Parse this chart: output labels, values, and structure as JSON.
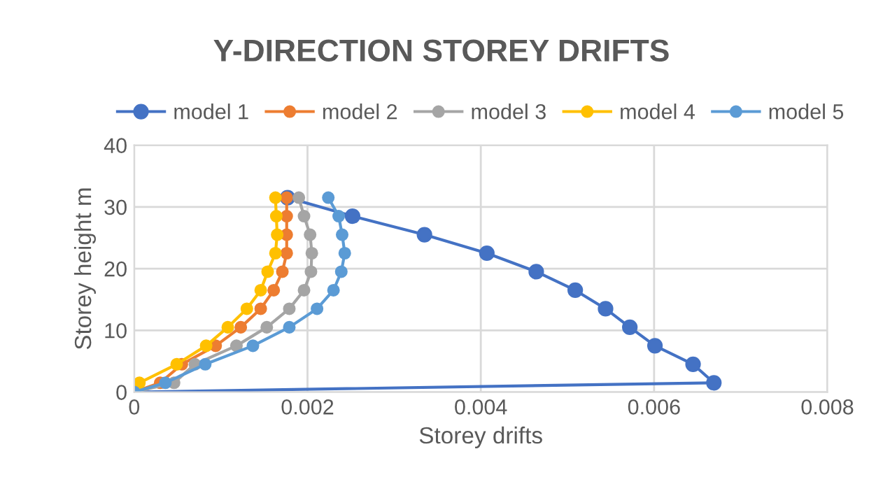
{
  "chart_data": {
    "type": "line",
    "title": "Y-DIRECTION STOREY DRIFTS",
    "xlabel": "Storey drifts",
    "ylabel": "Storey height m",
    "xlim": [
      0,
      0.008
    ],
    "xticks": [
      0,
      0.002,
      0.004,
      0.006,
      0.008
    ],
    "ylim": [
      0,
      40
    ],
    "yticks": [
      0,
      10,
      20,
      30,
      40
    ],
    "grid": true,
    "legend": "top",
    "marker": "circle",
    "line_style": "solid",
    "series": [
      {
        "name": "model 1",
        "color": "#4472c4",
        "x": [
          0,
          0.00669,
          0.00645,
          0.00601,
          0.00572,
          0.00544,
          0.00509,
          0.00464,
          0.00407,
          0.00335,
          0.00252,
          0.00177
        ],
        "values": [
          0,
          1.5,
          4.5,
          7.5,
          10.5,
          13.5,
          16.5,
          19.5,
          22.5,
          25.5,
          28.5,
          31.5
        ]
      },
      {
        "name": "model 2",
        "color": "#ed7d31",
        "x": [
          0,
          0.0003,
          0.00055,
          0.00094,
          0.00123,
          0.00146,
          0.00161,
          0.00171,
          0.00176,
          0.00176,
          0.00176,
          0.00176
        ],
        "values": [
          0,
          1.5,
          4.5,
          7.5,
          10.5,
          13.5,
          16.5,
          19.5,
          22.5,
          25.5,
          28.5,
          31.5
        ]
      },
      {
        "name": "model 3",
        "color": "#a5a5a5",
        "x": [
          0,
          0.00046,
          0.0007,
          0.00118,
          0.00153,
          0.00179,
          0.00196,
          0.00204,
          0.00205,
          0.00203,
          0.00196,
          0.0019
        ],
        "values": [
          0,
          1.5,
          4.5,
          7.5,
          10.5,
          13.5,
          16.5,
          19.5,
          22.5,
          25.5,
          28.5,
          31.5
        ]
      },
      {
        "name": "model 4",
        "color": "#ffc000",
        "x": [
          0,
          6e-05,
          0.00049,
          0.00083,
          0.00108,
          0.0013,
          0.00146,
          0.00154,
          0.00163,
          0.00165,
          0.00164,
          0.00163
        ],
        "values": [
          0,
          1.5,
          4.5,
          7.5,
          10.5,
          13.5,
          16.5,
          19.5,
          22.5,
          25.5,
          28.5,
          31.5
        ]
      },
      {
        "name": "model 5",
        "color": "#5b9bd5",
        "x": [
          0,
          0.00036,
          0.00082,
          0.00137,
          0.00179,
          0.00211,
          0.0023,
          0.00239,
          0.00243,
          0.0024,
          0.00236,
          0.00224
        ],
        "values": [
          0,
          1.5,
          4.5,
          7.5,
          10.5,
          13.5,
          16.5,
          19.5,
          22.5,
          25.5,
          28.5,
          31.5
        ]
      }
    ]
  }
}
